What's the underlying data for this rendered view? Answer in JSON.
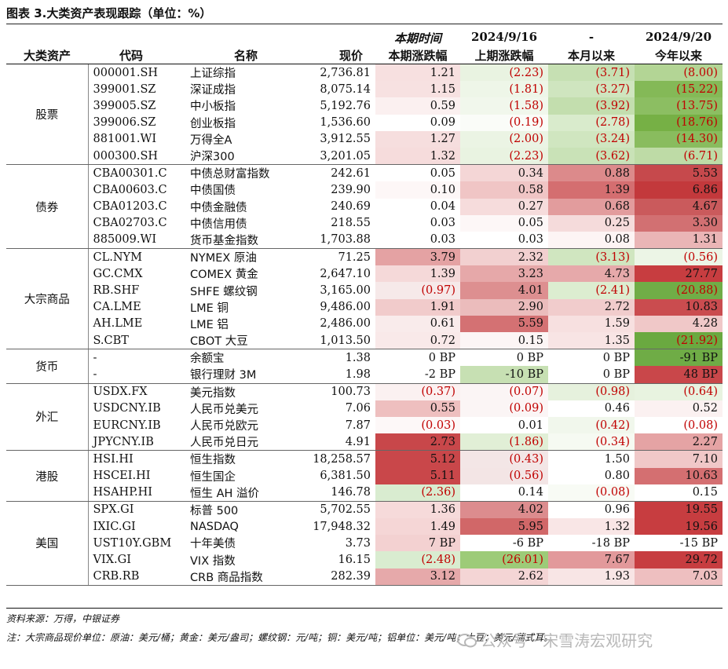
{
  "title": "图表 3.大类资产表现跟踪（单位：%）",
  "colors": {
    "red_strong": "#c9484b",
    "red_mid": "#de8e8f",
    "red_light": "#f3d4d4",
    "green_strong": "#70ad47",
    "green_mid": "#a9d08e",
    "green_light": "#e2efda",
    "negative_text": "#c00000"
  },
  "header": {
    "cat": "大类资产",
    "code": "代码",
    "name": "名称",
    "price": "现价",
    "c1_top": "本期时间",
    "c1": "本期涨跌幅",
    "c2_top": "2024/9/16",
    "c2": "上期涨跌幅",
    "c3_top": "-",
    "c3": "本月以来",
    "c4_top": "2024/9/20",
    "c4": "今年以来"
  },
  "groups": [
    {
      "name": "股票",
      "rows": [
        {
          "code": "000001.SH",
          "name": "上证综指",
          "price": "2,736.81",
          "vals": [
            "1.21",
            "(2.23)",
            "(3.71)",
            "(8.00)"
          ],
          "bg": [
            "#f7e0e0",
            "#e9f3e1",
            "#c6e0b3",
            "#b3d595"
          ]
        },
        {
          "code": "399001.SZ",
          "name": "深证成指",
          "price": "8,075.14",
          "vals": [
            "1.15",
            "(1.81)",
            "(3.27)",
            "(15.22)"
          ],
          "bg": [
            "#f7e1e1",
            "#eef6e8",
            "#cfe5bf",
            "#84b957"
          ]
        },
        {
          "code": "399005.SZ",
          "name": "中小板指",
          "price": "5,192.76",
          "vals": [
            "0.59",
            "(1.58)",
            "(3.92)",
            "(13.75)"
          ],
          "bg": [
            "#fbf0f0",
            "#f1f7ec",
            "#c3deae",
            "#8cbe62"
          ]
        },
        {
          "code": "399006.SZ",
          "name": "创业板指",
          "price": "1,536.60",
          "vals": [
            "0.09",
            "(0.19)",
            "(2.78)",
            "(18.76)"
          ],
          "bg": [
            "#ffffff",
            "#fafcf8",
            "#d9ebcc",
            "#76b045"
          ]
        },
        {
          "code": "881001.WI",
          "name": "万得全A",
          "price": "3,912.55",
          "vals": [
            "1.27",
            "(2.00)",
            "(3.24)",
            "(14.30)"
          ],
          "bg": [
            "#f6dede",
            "#ebf4e4",
            "#d0e6c0",
            "#89bc5e"
          ]
        },
        {
          "code": "000300.SH",
          "name": "沪深300",
          "price": "3,201.05",
          "vals": [
            "1.32",
            "(2.23)",
            "(3.62)",
            "(6.71)"
          ],
          "bg": [
            "#f6dcdc",
            "#e9f3e1",
            "#c9e2b7",
            "#bedba6"
          ]
        }
      ]
    },
    {
      "name": "债券",
      "rows": [
        {
          "code": "CBA00301.C",
          "name": "中债总财富指数",
          "price": "242.61",
          "vals": [
            "0.05",
            "0.34",
            "0.88",
            "5.53"
          ],
          "bg": [
            "#ffffff",
            "#f4d6d6",
            "#dc8a8b",
            "#c6494c"
          ]
        },
        {
          "code": "CBA00603.C",
          "name": "中债国债",
          "price": "239.90",
          "vals": [
            "0.10",
            "0.58",
            "1.39",
            "6.86"
          ],
          "bg": [
            "#fdf7f7",
            "#f0c5c5",
            "#d46e70",
            "#c3393c"
          ]
        },
        {
          "code": "CBA01203.C",
          "name": "中债金融债",
          "price": "240.69",
          "vals": [
            "0.04",
            "0.27",
            "0.68",
            "4.67"
          ],
          "bg": [
            "#ffffff",
            "#f6dcdc",
            "#e29c9d",
            "#ca5a5c"
          ]
        },
        {
          "code": "CBA02703.C",
          "name": "中债信用债",
          "price": "218.55",
          "vals": [
            "0.03",
            "0.05",
            "0.25",
            "3.30"
          ],
          "bg": [
            "#ffffff",
            "#fdf7f7",
            "#f5dbdb",
            "#d27072"
          ]
        },
        {
          "code": "885009.WI",
          "name": "货币基金指数",
          "price": "1,703.88",
          "vals": [
            "0.03",
            "0.03",
            "0.08",
            "1.31"
          ],
          "bg": [
            "#ffffff",
            "#ffffff",
            "#fdf4f4",
            "#eab5b6"
          ]
        }
      ]
    },
    {
      "name": "大宗商品",
      "rows": [
        {
          "code": "CL.NYM",
          "name": "NYMEX 原油",
          "price": "71.25",
          "vals": [
            "3.79",
            "2.32",
            "(3.13)",
            "(0.56)"
          ],
          "bg": [
            "#e4a2a3",
            "#f2d0d0",
            "#d0e6c0",
            "#ecf5e6"
          ]
        },
        {
          "code": "GC.CMX",
          "name": "COMEX 黄金",
          "price": "2,647.10",
          "vals": [
            "1.39",
            "3.23",
            "4.73",
            "27.77"
          ],
          "bg": [
            "#f5d9d9",
            "#e6a8a9",
            "#e6a9aa",
            "#c73d40"
          ]
        },
        {
          "code": "RB.SHF",
          "name": "SHFE 螺纹钢",
          "price": "3,165.00",
          "vals": [
            "(0.97)",
            "4.01",
            "(2.41)",
            "(20.88)"
          ],
          "bg": [
            "#f6e9e9",
            "#dd8f90",
            "#dcedd0",
            "#70ad47"
          ]
        },
        {
          "code": "CA.LME",
          "name": "LME 铜",
          "price": "9,486.00",
          "vals": [
            "1.91",
            "2.90",
            "2.72",
            "10.83"
          ],
          "bg": [
            "#f1cbcb",
            "#ebbcbc",
            "#f1cccc",
            "#ca4c4f"
          ]
        },
        {
          "code": "AH.LME",
          "name": "LME 铝",
          "price": "2,486.00",
          "vals": [
            "0.61",
            "5.59",
            "1.59",
            "4.28"
          ],
          "bg": [
            "#f9ebeb",
            "#d47173",
            "#f7e0e0",
            "#f0c8c8"
          ]
        },
        {
          "code": "S.CBT",
          "name": "CBOT 大豆",
          "price": "1,013.50",
          "vals": [
            "0.72",
            "0.15",
            "1.35",
            "(21.92)"
          ],
          "bg": [
            "#f9e9e9",
            "#fcf5f5",
            "#f8e4e4",
            "#6aa940"
          ]
        }
      ]
    },
    {
      "name": "货币",
      "rows": [
        {
          "code": "-",
          "name": "余额宝",
          "price": "1.38",
          "vals": [
            "0 BP",
            "0 BP",
            "0 BP",
            "-91 BP"
          ],
          "bg": [
            "#ffffff",
            "#ffffff",
            "#ffffff",
            "#6fac46"
          ]
        },
        {
          "code": "-",
          "name": "银行理财 3M",
          "price": "1.98",
          "vals": [
            "-2 BP",
            "-10 BP",
            "0 BP",
            "48 BP"
          ],
          "bg": [
            "#ffffff",
            "#c7e0b3",
            "#ffffff",
            "#c9474a"
          ]
        }
      ]
    },
    {
      "name": "外汇",
      "rows": [
        {
          "code": "USDX.FX",
          "name": "美元指数",
          "price": "100.73",
          "vals": [
            "(0.37)",
            "(0.07)",
            "(0.98)",
            "(0.64)"
          ],
          "bg": [
            "#fbf1f1",
            "#fbf5f5",
            "#e6f1dd",
            "#e8f3e0"
          ]
        },
        {
          "code": "USDCNY.IB",
          "name": "人民币兑美元",
          "price": "7.06",
          "vals": [
            "0.55",
            "(0.09)",
            "0.46",
            "0.52"
          ],
          "bg": [
            "#eebfbf",
            "#fbf5f5",
            "#ffffff",
            "#fbf1f1"
          ]
        },
        {
          "code": "EURCNY.IB",
          "name": "人民币兑欧元",
          "price": "7.87",
          "vals": [
            "(0.03)",
            "0.01",
            "(0.42)",
            "(0.08)"
          ],
          "bg": [
            "#fdf8f8",
            "#ffffff",
            "#f1f7ec",
            "#ffffff"
          ]
        },
        {
          "code": "JPYCNY.IB",
          "name": "人民币兑日元",
          "price": "4.91",
          "vals": [
            "2.73",
            "(1.86)",
            "(0.34)",
            "2.27"
          ],
          "bg": [
            "#c8474a",
            "#e1efd6",
            "#f6faf2",
            "#e5a3a4"
          ]
        }
      ]
    },
    {
      "name": "港股",
      "rows": [
        {
          "code": "HSI.HI",
          "name": "恒生指数",
          "price": "18,258.57",
          "vals": [
            "5.12",
            "(0.43)",
            "1.50",
            "7.10"
          ],
          "bg": [
            "#c9474a",
            "#f3e6e6",
            "#ffffff",
            "#f0c8c8"
          ]
        },
        {
          "code": "HSCEI.HI",
          "name": "恒生国企",
          "price": "6,381.50",
          "vals": [
            "5.11",
            "(0.56)",
            "0.80",
            "10.63"
          ],
          "bg": [
            "#c9474a",
            "#f3e5e5",
            "#ffffff",
            "#d46f71"
          ]
        },
        {
          "code": "HSAHP.HI",
          "name": "恒生 AH 溢价",
          "price": "146.78",
          "vals": [
            "(2.36)",
            "0.14",
            "(0.08)",
            "0.15"
          ],
          "bg": [
            "#d9ecd0",
            "#ffffff",
            "#f8fbf5",
            "#ffffff"
          ]
        }
      ]
    },
    {
      "name": "美国",
      "rows": [
        {
          "code": "SPX.GI",
          "name": "标普 500",
          "price": "5,702.55",
          "vals": [
            "1.36",
            "4.02",
            "0.96",
            "19.55"
          ],
          "bg": [
            "#f6dada",
            "#dc8c8e",
            "#ffffff",
            "#c73d40"
          ]
        },
        {
          "code": "IXIC.GI",
          "name": "NASDAQ",
          "price": "17,948.32",
          "vals": [
            "1.49",
            "5.95",
            "1.32",
            "19.56"
          ],
          "bg": [
            "#f5d6d6",
            "#d16768",
            "#f9e6e6",
            "#c73d40"
          ]
        },
        {
          "code": "UST10Y.GBM",
          "name": "十年美债",
          "price": "3.73",
          "vals": [
            "7 BP",
            "-6 BP",
            "-18 BP",
            "-15 BP"
          ],
          "bg": [
            "#f3d1d1",
            "#ffffff",
            "#ffffff",
            "#ffffff"
          ]
        },
        {
          "code": "VIX.GI",
          "name": "VIX 指数",
          "price": "16.15",
          "vals": [
            "(2.48)",
            "(26.01)",
            "7.67",
            "29.72"
          ],
          "bg": [
            "#d9ecd0",
            "#9dcb78",
            "#e2999b",
            "#c73d40"
          ]
        },
        {
          "code": "CRB.RB",
          "name": "CRB 商品指数",
          "price": "282.39",
          "vals": [
            "3.12",
            "2.62",
            "1.93",
            "7.03"
          ],
          "bg": [
            "#e6a9aa",
            "#f4d5d5",
            "#f8e5e5",
            "#eebfc0"
          ]
        }
      ]
    }
  ],
  "note_source": "资料来源：万得，中银证券",
  "note_units": "注：大宗商品现价单位：原油：美元/桶；黄金：美元/盎司；螺纹钢：元/吨；铜：美元/吨；铝单位：美元/吨；大豆：美元/蒲式耳。",
  "watermark": "公众号 · 宋雪涛宏观研究"
}
